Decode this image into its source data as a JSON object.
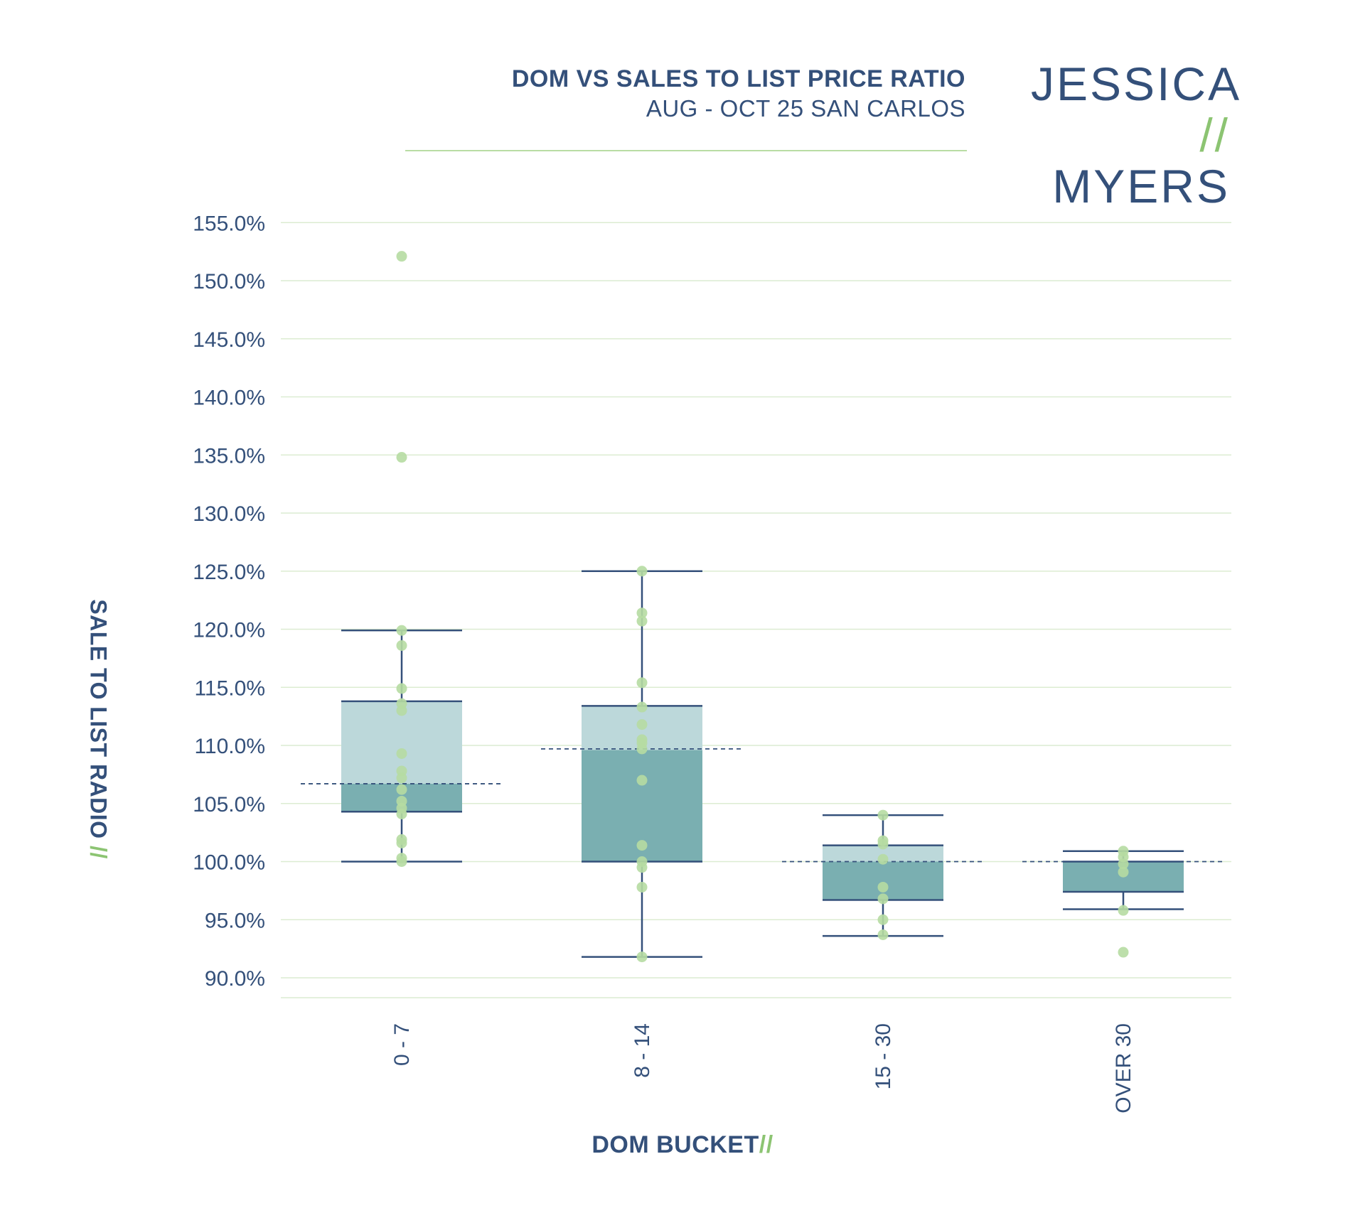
{
  "header": {
    "title": "DOM VS SALES TO LIST PRICE RATIO",
    "subtitle": "AUG - OCT 25 SAN CARLOS"
  },
  "logo": {
    "first_name": "JESSICA",
    "slashes": "//",
    "last_name": "MYERS"
  },
  "colors": {
    "navy": "#34507a",
    "green": "#8cc472",
    "dot": "#b6dba2",
    "box_upper": "#bcd8da",
    "box_lower": "#7aafb1",
    "grid": "#dcecd2"
  },
  "chart_data": {
    "type": "box",
    "title": "DOM VS SALES TO LIST PRICE RATIO",
    "subtitle": "AUG - OCT 25 SAN CARLOS",
    "xlabel": "DOM BUCKET",
    "xlabel_suffix": "//",
    "ylabel": "SALE TO LIST RADIO",
    "ylabel_suffix": "//",
    "ylim": [
      88.3,
      157
    ],
    "yticks": [
      90,
      95,
      100,
      105,
      110,
      115,
      120,
      125,
      130,
      135,
      140,
      145,
      150,
      155
    ],
    "ytick_labels": [
      "90.0%",
      "95.0%",
      "100.0%",
      "105.0%",
      "110.0%",
      "115.0%",
      "120.0%",
      "125.0%",
      "130.0%",
      "135.0%",
      "140.0%",
      "145.0%",
      "150.0%",
      "155.0%"
    ],
    "grid": true,
    "categories": [
      "0 - 7",
      "8 - 14",
      "15 - 30",
      "OVER 30"
    ],
    "boxes": [
      {
        "category": "0 - 7",
        "whisker_low": 100.0,
        "q1": 104.3,
        "median": 106.7,
        "q3": 113.8,
        "whisker_high": 119.9,
        "mean": 106.7,
        "points": [
          152.1,
          134.8,
          119.9,
          118.6,
          114.9,
          113.6,
          113.0,
          109.3,
          107.8,
          107.2,
          106.2,
          105.2,
          104.6,
          104.1,
          101.9,
          101.6,
          100.3,
          100.0
        ]
      },
      {
        "category": "8 - 14",
        "whisker_low": 91.8,
        "q1": 100.0,
        "median": 109.6,
        "q3": 113.4,
        "whisker_high": 125.0,
        "mean": 109.7,
        "points": [
          125.0,
          121.4,
          120.7,
          115.4,
          113.3,
          111.8,
          110.5,
          110.2,
          109.7,
          107.0,
          101.4,
          100.0,
          99.5,
          97.8,
          91.8
        ]
      },
      {
        "category": "15 - 30",
        "whisker_low": 93.6,
        "q1": 96.7,
        "median": 100.0,
        "q3": 101.4,
        "whisker_high": 104.0,
        "mean": 100.0,
        "points": [
          104.0,
          101.8,
          101.5,
          100.2,
          97.8,
          96.8,
          95.0,
          93.7
        ]
      },
      {
        "category": "OVER 30",
        "whisker_low": 95.9,
        "q1": 97.4,
        "median": 100.0,
        "q3": 100.0,
        "whisker_high": 100.9,
        "mean": 100.0,
        "points": [
          100.9,
          100.4,
          99.8,
          99.1,
          95.8,
          92.2
        ]
      }
    ]
  }
}
